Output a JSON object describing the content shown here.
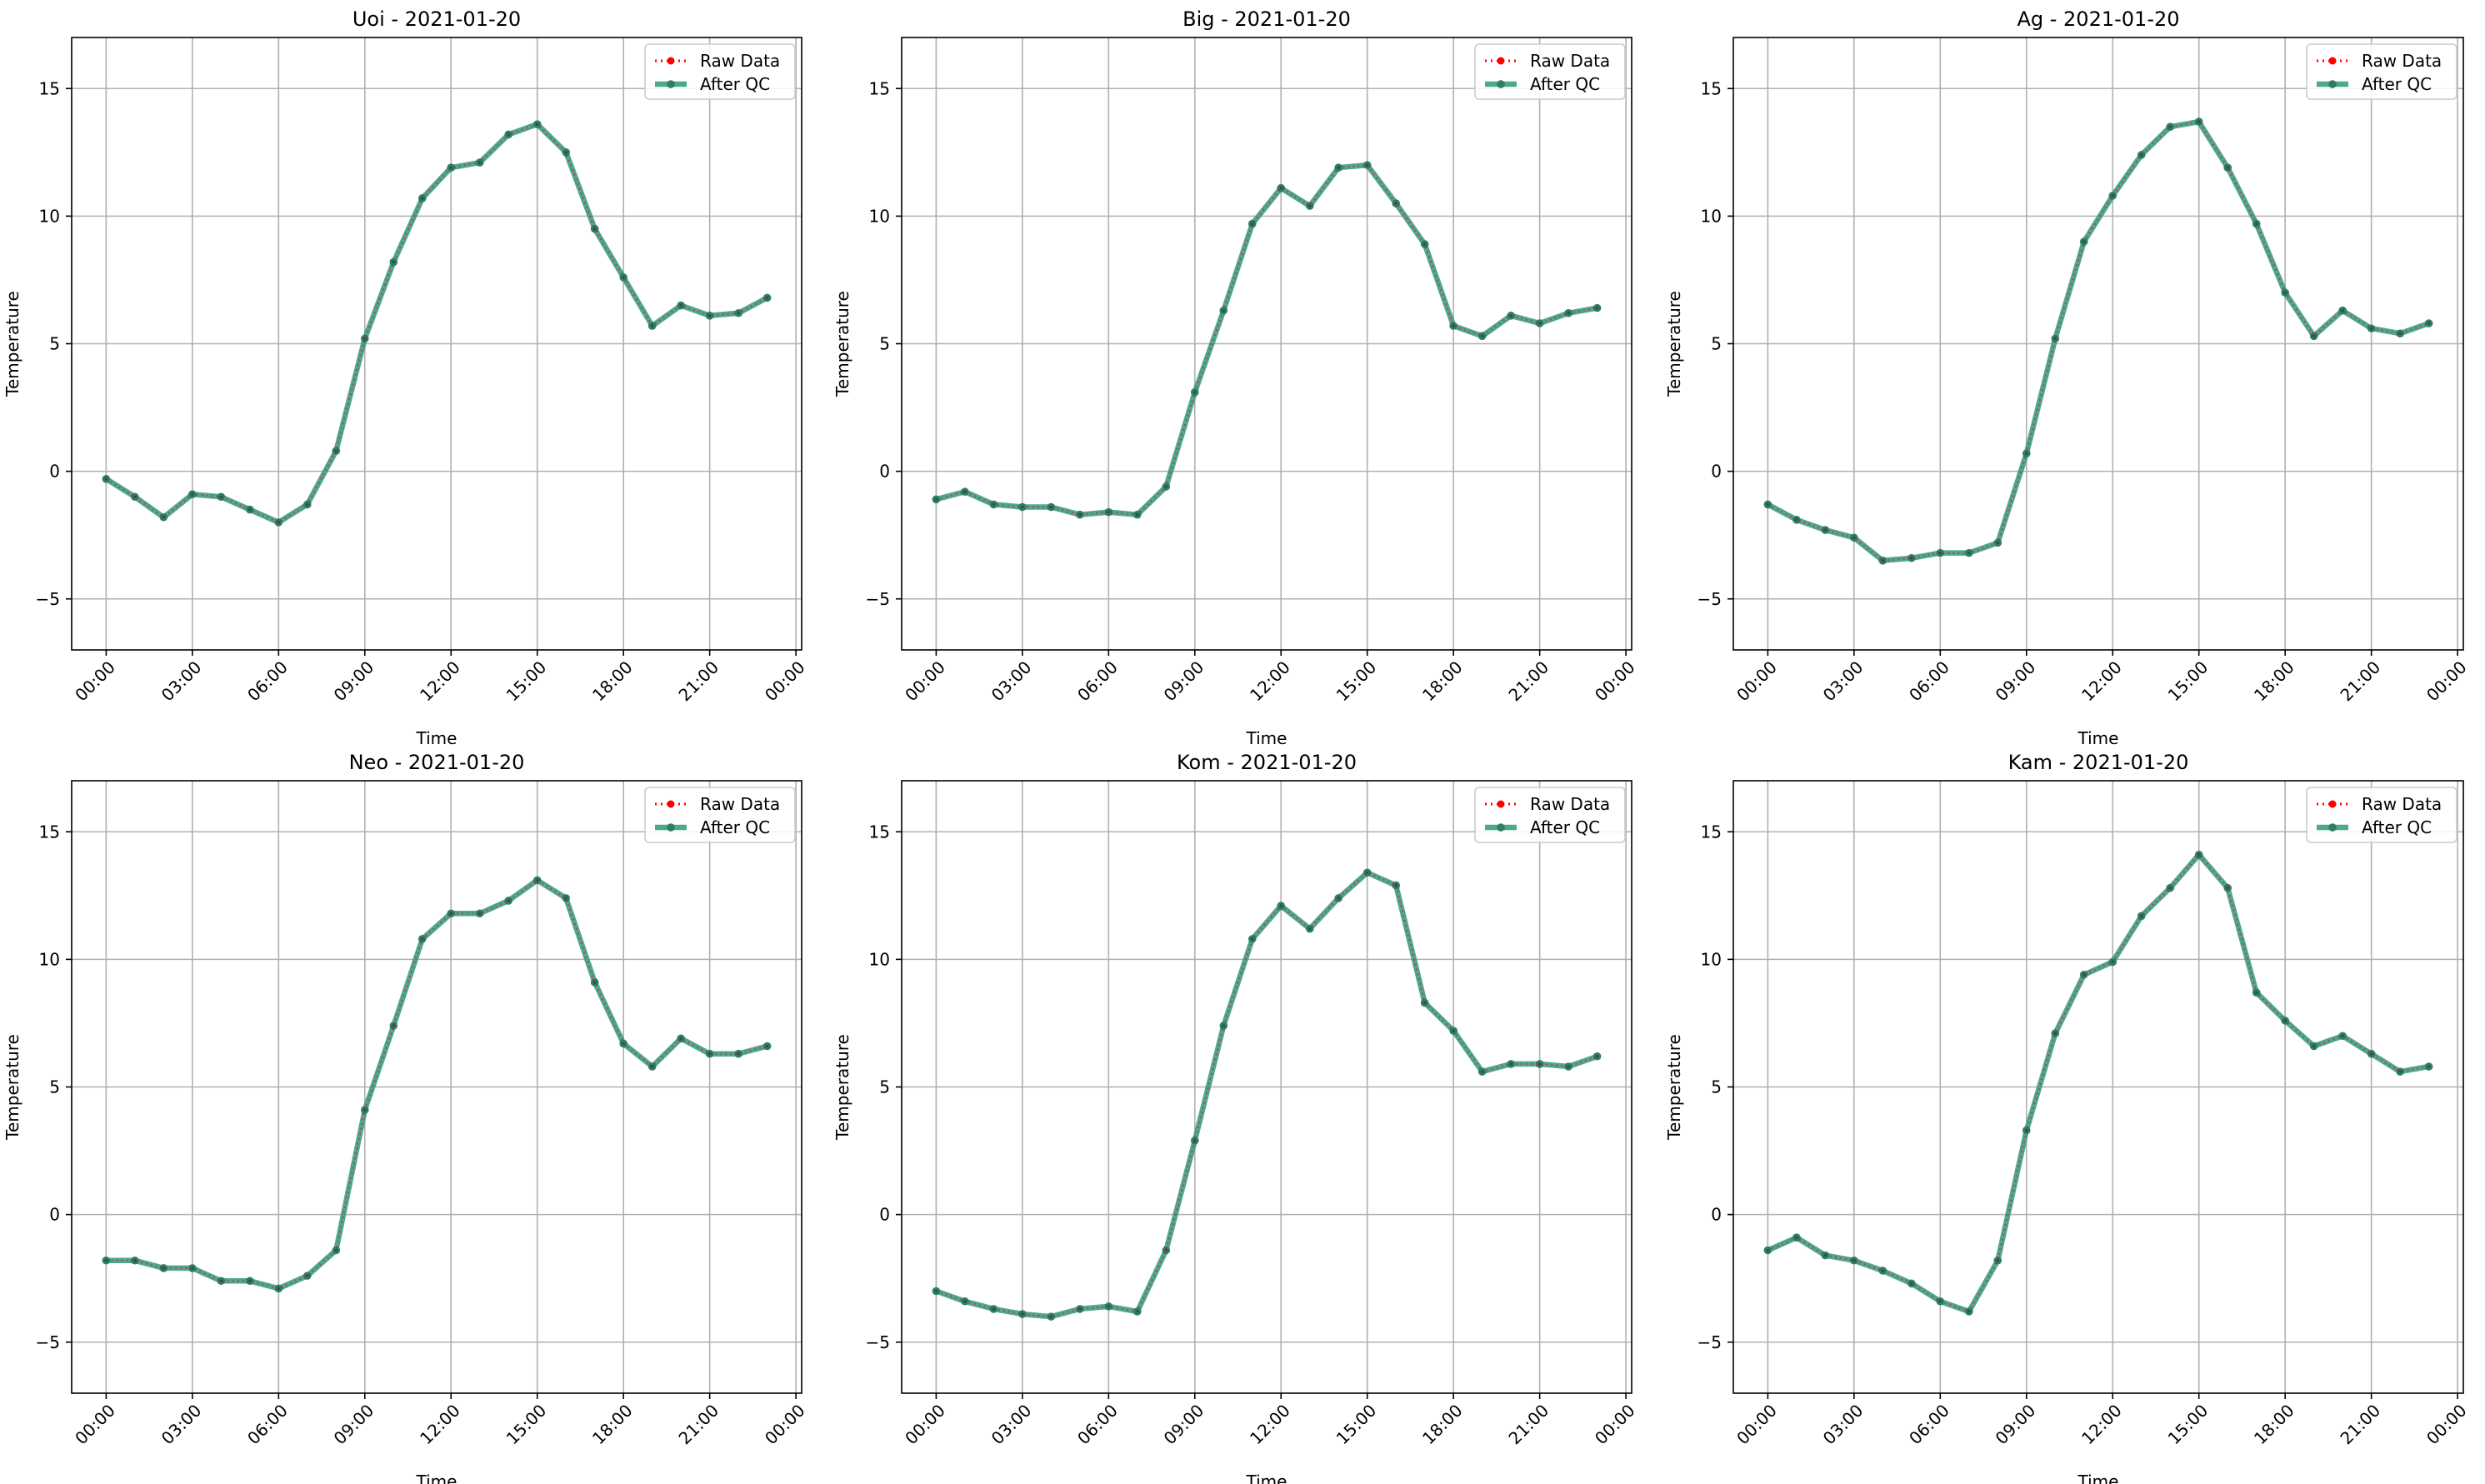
{
  "chart_data": [
    {
      "type": "line",
      "title": "Uoi - 2021-01-20",
      "xlabel": "Time",
      "ylabel": "Temperature",
      "xlim": [
        -1.2,
        24.2
      ],
      "ylim": [
        -7,
        17
      ],
      "x_ticks": [
        0,
        3,
        6,
        9,
        12,
        15,
        18,
        21,
        24
      ],
      "x_tick_labels": [
        "00:00",
        "03:00",
        "06:00",
        "09:00",
        "12:00",
        "15:00",
        "18:00",
        "21:00",
        "00:00"
      ],
      "y_ticks": [
        -5,
        0,
        5,
        10,
        15
      ],
      "y_tick_labels": [
        "−5",
        "0",
        "5",
        "10",
        "15"
      ],
      "grid": true,
      "legend_position": "top-right",
      "x": [
        0,
        1,
        2,
        3,
        4,
        5,
        6,
        7,
        8,
        9,
        10,
        11,
        12,
        13,
        14,
        15,
        16,
        17,
        18,
        19,
        20,
        21,
        22,
        23
      ],
      "series": [
        {
          "name": "Raw Data",
          "style": "dotted-marker",
          "color": "#ff0000",
          "values": [
            -0.3,
            -1.0,
            -1.8,
            -0.9,
            -1.0,
            -1.5,
            -2.0,
            -1.3,
            0.8,
            5.2,
            8.2,
            10.7,
            11.9,
            12.1,
            13.2,
            13.6,
            12.5,
            9.5,
            7.6,
            5.7,
            6.5,
            6.1,
            6.2,
            6.8
          ]
        },
        {
          "name": "After QC",
          "style": "solid-marker",
          "color": "#3a9e84",
          "values": [
            -0.3,
            -1.0,
            -1.8,
            -0.9,
            -1.0,
            -1.5,
            -2.0,
            -1.3,
            0.8,
            5.2,
            8.2,
            10.7,
            11.9,
            12.1,
            13.2,
            13.6,
            12.5,
            9.5,
            7.6,
            5.7,
            6.5,
            6.1,
            6.2,
            6.8
          ]
        }
      ]
    },
    {
      "type": "line",
      "title": "Big - 2021-01-20",
      "xlabel": "Time",
      "ylabel": "Temperature",
      "xlim": [
        -1.2,
        24.2
      ],
      "ylim": [
        -7,
        17
      ],
      "x_ticks": [
        0,
        3,
        6,
        9,
        12,
        15,
        18,
        21,
        24
      ],
      "x_tick_labels": [
        "00:00",
        "03:00",
        "06:00",
        "09:00",
        "12:00",
        "15:00",
        "18:00",
        "21:00",
        "00:00"
      ],
      "y_ticks": [
        -5,
        0,
        5,
        10,
        15
      ],
      "y_tick_labels": [
        "−5",
        "0",
        "5",
        "10",
        "15"
      ],
      "grid": true,
      "legend_position": "top-right",
      "x": [
        0,
        1,
        2,
        3,
        4,
        5,
        6,
        7,
        8,
        9,
        10,
        11,
        12,
        13,
        14,
        15,
        16,
        17,
        18,
        19,
        20,
        21,
        22,
        23
      ],
      "series": [
        {
          "name": "Raw Data",
          "style": "dotted-marker",
          "color": "#ff0000",
          "values": [
            -1.1,
            -0.8,
            -1.3,
            -1.4,
            -1.4,
            -1.7,
            -1.6,
            -1.7,
            -0.6,
            3.1,
            6.3,
            9.7,
            11.1,
            10.4,
            11.9,
            12.0,
            10.5,
            8.9,
            5.7,
            5.3,
            6.1,
            5.8,
            6.2,
            6.4
          ]
        },
        {
          "name": "After QC",
          "style": "solid-marker",
          "color": "#3a9e84",
          "values": [
            -1.1,
            -0.8,
            -1.3,
            -1.4,
            -1.4,
            -1.7,
            -1.6,
            -1.7,
            -0.6,
            3.1,
            6.3,
            9.7,
            11.1,
            10.4,
            11.9,
            12.0,
            10.5,
            8.9,
            5.7,
            5.3,
            6.1,
            5.8,
            6.2,
            6.4
          ]
        }
      ]
    },
    {
      "type": "line",
      "title": "Ag - 2021-01-20",
      "xlabel": "Time",
      "ylabel": "Temperature",
      "xlim": [
        -1.2,
        24.2
      ],
      "ylim": [
        -7,
        17
      ],
      "x_ticks": [
        0,
        3,
        6,
        9,
        12,
        15,
        18,
        21,
        24
      ],
      "x_tick_labels": [
        "00:00",
        "03:00",
        "06:00",
        "09:00",
        "12:00",
        "15:00",
        "18:00",
        "21:00",
        "00:00"
      ],
      "y_ticks": [
        -5,
        0,
        5,
        10,
        15
      ],
      "y_tick_labels": [
        "−5",
        "0",
        "5",
        "10",
        "15"
      ],
      "grid": true,
      "legend_position": "top-right",
      "x": [
        0,
        1,
        2,
        3,
        4,
        5,
        6,
        7,
        8,
        9,
        10,
        11,
        12,
        13,
        14,
        15,
        16,
        17,
        18,
        19,
        20,
        21,
        22,
        23
      ],
      "series": [
        {
          "name": "Raw Data",
          "style": "dotted-marker",
          "color": "#ff0000",
          "values": [
            -1.3,
            -1.9,
            -2.3,
            -2.6,
            -3.5,
            -3.4,
            -3.2,
            -3.2,
            -2.8,
            0.7,
            5.2,
            9.0,
            10.8,
            12.4,
            13.5,
            13.7,
            11.9,
            9.7,
            7.0,
            5.3,
            6.3,
            5.6,
            5.4,
            5.8
          ]
        },
        {
          "name": "After QC",
          "style": "solid-marker",
          "color": "#3a9e84",
          "values": [
            -1.3,
            -1.9,
            -2.3,
            -2.6,
            -3.5,
            -3.4,
            -3.2,
            -3.2,
            -2.8,
            0.7,
            5.2,
            9.0,
            10.8,
            12.4,
            13.5,
            13.7,
            11.9,
            9.7,
            7.0,
            5.3,
            6.3,
            5.6,
            5.4,
            5.8
          ]
        }
      ]
    },
    {
      "type": "line",
      "title": "Neo - 2021-01-20",
      "xlabel": "Time",
      "ylabel": "Temperature",
      "xlim": [
        -1.2,
        24.2
      ],
      "ylim": [
        -7,
        17
      ],
      "x_ticks": [
        0,
        3,
        6,
        9,
        12,
        15,
        18,
        21,
        24
      ],
      "x_tick_labels": [
        "00:00",
        "03:00",
        "06:00",
        "09:00",
        "12:00",
        "15:00",
        "18:00",
        "21:00",
        "00:00"
      ],
      "y_ticks": [
        -5,
        0,
        5,
        10,
        15
      ],
      "y_tick_labels": [
        "−5",
        "0",
        "5",
        "10",
        "15"
      ],
      "grid": true,
      "legend_position": "top-right",
      "x": [
        0,
        1,
        2,
        3,
        4,
        5,
        6,
        7,
        8,
        9,
        10,
        11,
        12,
        13,
        14,
        15,
        16,
        17,
        18,
        19,
        20,
        21,
        22,
        23
      ],
      "series": [
        {
          "name": "Raw Data",
          "style": "dotted-marker",
          "color": "#ff0000",
          "values": [
            -1.8,
            -1.8,
            -2.1,
            -2.1,
            -2.6,
            -2.6,
            -2.9,
            -2.4,
            -1.4,
            4.1,
            7.4,
            10.8,
            11.8,
            11.8,
            12.3,
            13.1,
            12.4,
            9.1,
            6.7,
            5.8,
            6.9,
            6.3,
            6.3,
            6.6
          ]
        },
        {
          "name": "After QC",
          "style": "solid-marker",
          "color": "#3a9e84",
          "values": [
            -1.8,
            -1.8,
            -2.1,
            -2.1,
            -2.6,
            -2.6,
            -2.9,
            -2.4,
            -1.4,
            4.1,
            7.4,
            10.8,
            11.8,
            11.8,
            12.3,
            13.1,
            12.4,
            9.1,
            6.7,
            5.8,
            6.9,
            6.3,
            6.3,
            6.6
          ]
        }
      ]
    },
    {
      "type": "line",
      "title": "Kom - 2021-01-20",
      "xlabel": "Time",
      "ylabel": "Temperature",
      "xlim": [
        -1.2,
        24.2
      ],
      "ylim": [
        -7,
        17
      ],
      "x_ticks": [
        0,
        3,
        6,
        9,
        12,
        15,
        18,
        21,
        24
      ],
      "x_tick_labels": [
        "00:00",
        "03:00",
        "06:00",
        "09:00",
        "12:00",
        "15:00",
        "18:00",
        "21:00",
        "00:00"
      ],
      "y_ticks": [
        -5,
        0,
        5,
        10,
        15
      ],
      "y_tick_labels": [
        "−5",
        "0",
        "5",
        "10",
        "15"
      ],
      "grid": true,
      "legend_position": "top-right",
      "x": [
        0,
        1,
        2,
        3,
        4,
        5,
        6,
        7,
        8,
        9,
        10,
        11,
        12,
        13,
        14,
        15,
        16,
        17,
        18,
        19,
        20,
        21,
        22,
        23
      ],
      "series": [
        {
          "name": "Raw Data",
          "style": "dotted-marker",
          "color": "#ff0000",
          "values": [
            -3.0,
            -3.4,
            -3.7,
            -3.9,
            -4.0,
            -3.7,
            -3.6,
            -3.8,
            -1.4,
            2.9,
            7.4,
            10.8,
            12.1,
            11.2,
            12.4,
            13.4,
            12.9,
            8.3,
            7.2,
            5.6,
            5.9,
            5.9,
            5.8,
            6.2
          ]
        },
        {
          "name": "After QC",
          "style": "solid-marker",
          "color": "#3a9e84",
          "values": [
            -3.0,
            -3.4,
            -3.7,
            -3.9,
            -4.0,
            -3.7,
            -3.6,
            -3.8,
            -1.4,
            2.9,
            7.4,
            10.8,
            12.1,
            11.2,
            12.4,
            13.4,
            12.9,
            8.3,
            7.2,
            5.6,
            5.9,
            5.9,
            5.8,
            6.2
          ]
        }
      ]
    },
    {
      "type": "line",
      "title": "Kam - 2021-01-20",
      "xlabel": "Time",
      "ylabel": "Temperature",
      "xlim": [
        -1.2,
        24.2
      ],
      "ylim": [
        -7,
        17
      ],
      "x_ticks": [
        0,
        3,
        6,
        9,
        12,
        15,
        18,
        21,
        24
      ],
      "x_tick_labels": [
        "00:00",
        "03:00",
        "06:00",
        "09:00",
        "12:00",
        "15:00",
        "18:00",
        "21:00",
        "00:00"
      ],
      "y_ticks": [
        -5,
        0,
        5,
        10,
        15
      ],
      "y_tick_labels": [
        "−5",
        "0",
        "5",
        "10",
        "15"
      ],
      "grid": true,
      "legend_position": "top-right",
      "x": [
        0,
        1,
        2,
        3,
        4,
        5,
        6,
        7,
        8,
        9,
        10,
        11,
        12,
        13,
        14,
        15,
        16,
        17,
        18,
        19,
        20,
        21,
        22,
        23
      ],
      "series": [
        {
          "name": "Raw Data",
          "style": "dotted-marker",
          "color": "#ff0000",
          "values": [
            -1.4,
            -0.9,
            -1.6,
            -1.8,
            -2.2,
            -2.7,
            -3.4,
            -3.8,
            -1.8,
            3.3,
            7.1,
            9.4,
            9.9,
            11.7,
            12.8,
            14.1,
            12.8,
            8.7,
            7.6,
            6.6,
            7.0,
            6.3,
            5.6,
            5.8
          ]
        },
        {
          "name": "After QC",
          "style": "solid-marker",
          "color": "#3a9e84",
          "values": [
            -1.4,
            -0.9,
            -1.6,
            -1.8,
            -2.2,
            -2.7,
            -3.4,
            -3.8,
            -1.8,
            3.3,
            7.1,
            9.4,
            9.9,
            11.7,
            12.8,
            14.1,
            12.8,
            8.7,
            7.6,
            6.6,
            7.0,
            6.3,
            5.6,
            5.8
          ]
        }
      ]
    }
  ]
}
